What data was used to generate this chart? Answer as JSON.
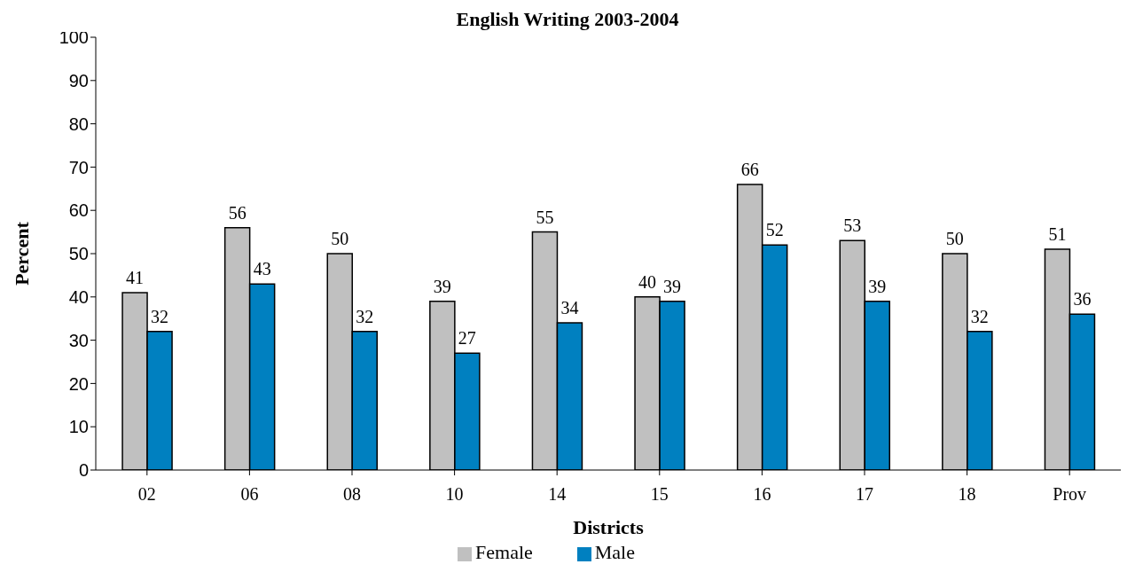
{
  "chart_data": {
    "type": "bar",
    "title": "English Writing 2003-2004",
    "xlabel": "Districts",
    "ylabel": "Percent",
    "categories": [
      "02",
      "06",
      "08",
      "10",
      "14",
      "15",
      "16",
      "17",
      "18",
      "Prov"
    ],
    "series": [
      {
        "name": "Female",
        "color": "#c0c0c0",
        "values": [
          41,
          56,
          50,
          39,
          55,
          40,
          66,
          53,
          50,
          51
        ]
      },
      {
        "name": "Male",
        "color": "#0080c0",
        "values": [
          32,
          43,
          32,
          27,
          34,
          39,
          52,
          39,
          32,
          36
        ]
      }
    ],
    "ylim": [
      0,
      100
    ],
    "yticks": [
      0,
      10,
      20,
      30,
      40,
      50,
      60,
      70,
      80,
      90,
      100
    ],
    "grid": false,
    "legend": "bottom",
    "data_labels": true
  }
}
